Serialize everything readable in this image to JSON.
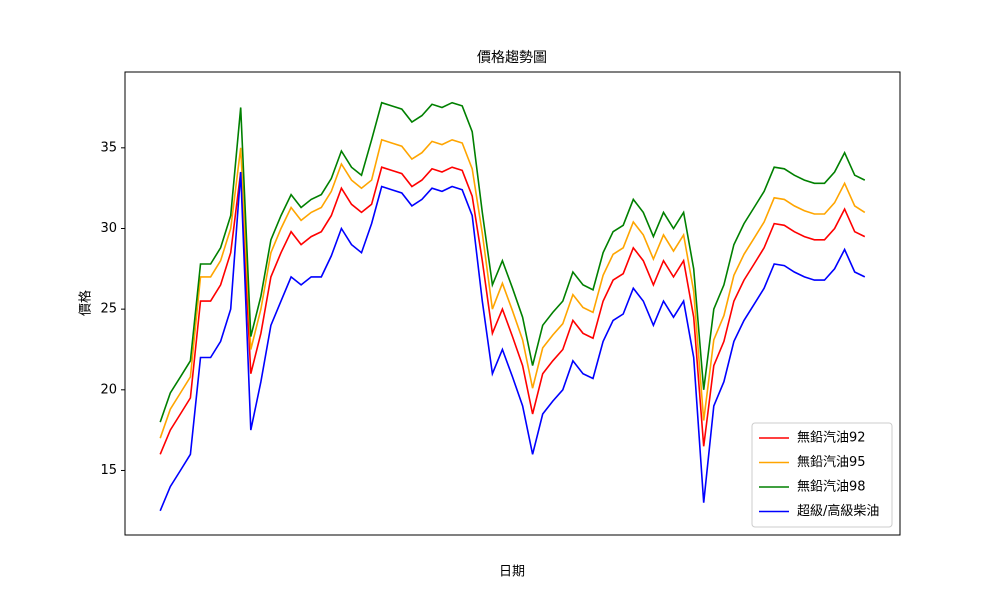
{
  "chart_data": {
    "type": "line",
    "title": "價格趨勢圖",
    "xlabel": "日期",
    "ylabel": "價格",
    "categories": [
      null,
      null,
      null,
      null,
      null,
      null,
      null,
      null,
      null,
      null,
      null,
      null,
      null,
      null,
      null,
      null,
      null,
      null,
      null,
      null,
      null,
      null,
      null,
      null,
      null,
      null,
      null,
      null,
      null,
      null,
      null,
      null,
      null,
      null,
      null,
      null,
      null,
      null,
      null,
      null,
      null,
      null,
      null,
      null,
      null,
      null,
      null,
      null,
      null,
      null,
      null,
      null,
      null,
      null,
      null,
      null,
      null,
      null,
      null,
      null,
      null,
      null,
      null,
      null,
      null,
      null,
      null,
      null,
      null,
      null,
      null
    ],
    "series": [
      {
        "name": "無鉛汽油92",
        "color": "red",
        "values": [
          16.0,
          17.5,
          18.5,
          19.5,
          25.5,
          25.5,
          26.5,
          28.5,
          33.5,
          21.0,
          23.5,
          27.0,
          28.5,
          29.8,
          29.0,
          29.5,
          29.8,
          30.8,
          32.5,
          31.5,
          31.0,
          31.5,
          33.8,
          33.6,
          33.4,
          32.6,
          33.0,
          33.7,
          33.5,
          33.8,
          33.6,
          32.0,
          28.0,
          23.5,
          25.0,
          23.3,
          21.5,
          18.5,
          21.0,
          21.8,
          22.5,
          24.3,
          23.5,
          23.2,
          25.5,
          26.8,
          27.2,
          28.8,
          28.0,
          26.5,
          28.0,
          27.0,
          28.0,
          24.5,
          16.5,
          21.5,
          23.0,
          25.5,
          26.8,
          27.8,
          28.8,
          30.3,
          30.2,
          29.8,
          29.5,
          29.3,
          29.3,
          30.0,
          31.2,
          29.8,
          29.5
        ]
      },
      {
        "name": "無鉛汽油95",
        "color": "orange",
        "values": [
          17.0,
          18.8,
          19.8,
          20.8,
          27.0,
          27.0,
          28.0,
          30.0,
          35.0,
          22.5,
          25.0,
          28.5,
          30.0,
          31.3,
          30.5,
          31.0,
          31.3,
          32.3,
          34.0,
          33.0,
          32.5,
          33.0,
          35.5,
          35.3,
          35.1,
          34.3,
          34.7,
          35.4,
          35.2,
          35.5,
          35.3,
          33.7,
          29.7,
          25.0,
          26.6,
          24.9,
          23.1,
          20.1,
          22.6,
          23.4,
          24.1,
          25.9,
          25.1,
          24.8,
          27.1,
          28.4,
          28.8,
          30.4,
          29.6,
          28.1,
          29.6,
          28.6,
          29.6,
          26.1,
          18.1,
          23.1,
          24.6,
          27.1,
          28.4,
          29.4,
          30.4,
          31.9,
          31.8,
          31.4,
          31.1,
          30.9,
          30.9,
          31.6,
          32.8,
          31.4,
          31.0
        ]
      },
      {
        "name": "無鉛汽油98",
        "color": "green",
        "values": [
          18.0,
          19.8,
          20.8,
          21.8,
          27.8,
          27.8,
          28.8,
          30.8,
          37.5,
          23.3,
          25.8,
          29.3,
          30.8,
          32.1,
          31.3,
          31.8,
          32.1,
          33.1,
          34.8,
          33.8,
          33.3,
          35.5,
          37.8,
          37.6,
          37.4,
          36.6,
          37.0,
          37.7,
          37.5,
          37.8,
          37.6,
          36.0,
          31.0,
          26.5,
          28.0,
          26.3,
          24.5,
          21.5,
          24.0,
          24.8,
          25.5,
          27.3,
          26.5,
          26.2,
          28.5,
          29.8,
          30.2,
          31.8,
          31.0,
          29.5,
          31.0,
          30.0,
          31.0,
          27.5,
          20.0,
          25.0,
          26.5,
          29.0,
          30.3,
          31.3,
          32.3,
          33.8,
          33.7,
          33.3,
          33.0,
          32.8,
          32.8,
          33.5,
          34.7,
          33.3,
          33.0
        ]
      },
      {
        "name": "超級/高級柴油",
        "color": "blue",
        "values": [
          12.5,
          14.0,
          15.0,
          16.0,
          22.0,
          22.0,
          23.0,
          25.0,
          33.5,
          17.5,
          20.5,
          24.0,
          25.5,
          27.0,
          26.5,
          27.0,
          27.0,
          28.3,
          30.0,
          29.0,
          28.5,
          30.3,
          32.6,
          32.4,
          32.2,
          31.4,
          31.8,
          32.5,
          32.3,
          32.6,
          32.4,
          30.8,
          25.5,
          21.0,
          22.5,
          20.8,
          19.0,
          16.0,
          18.5,
          19.3,
          20.0,
          21.8,
          21.0,
          20.7,
          23.0,
          24.3,
          24.7,
          26.3,
          25.5,
          24.0,
          25.5,
          24.5,
          25.5,
          22.0,
          13.0,
          19.0,
          20.5,
          23.0,
          24.3,
          25.3,
          26.3,
          27.8,
          27.7,
          27.3,
          27.0,
          26.8,
          26.8,
          27.5,
          28.7,
          27.3,
          27.0
        ]
      }
    ],
    "ylim": [
      11.0,
      39.7
    ],
    "yticks": [
      15,
      20,
      25,
      30,
      35
    ],
    "grid": false,
    "legend": "lower right"
  }
}
